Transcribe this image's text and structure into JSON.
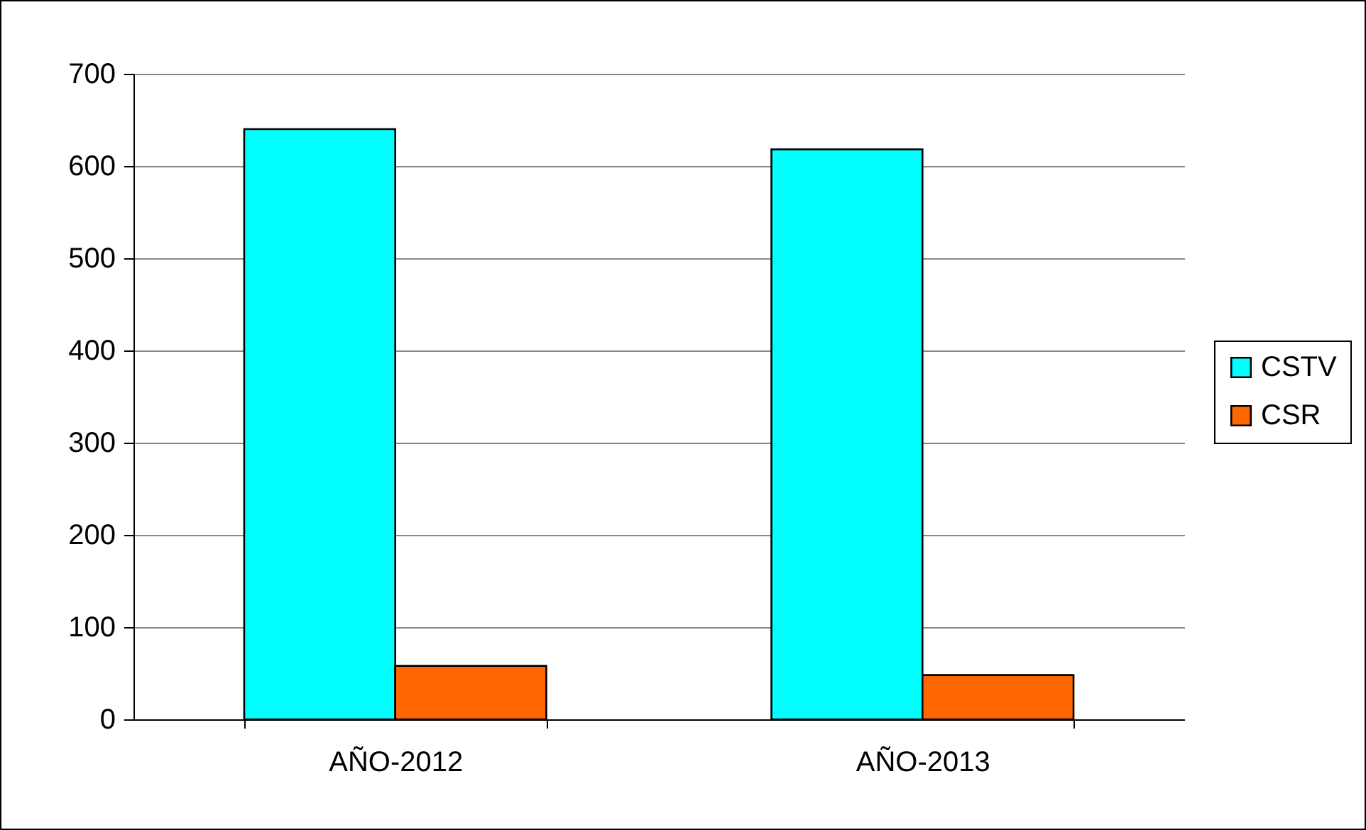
{
  "chart_data": {
    "type": "bar",
    "categories": [
      "AÑO-2012",
      "AÑO-2013"
    ],
    "series": [
      {
        "name": "CSTV",
        "color": "#00ffff",
        "values": [
          640,
          618
        ]
      },
      {
        "name": "CSR",
        "color": "#ff6600",
        "values": [
          58,
          48
        ]
      }
    ],
    "ylim": [
      0,
      700
    ],
    "yticks": [
      0,
      100,
      200,
      300,
      400,
      500,
      600,
      700
    ],
    "grid": "y",
    "legend": "right"
  }
}
